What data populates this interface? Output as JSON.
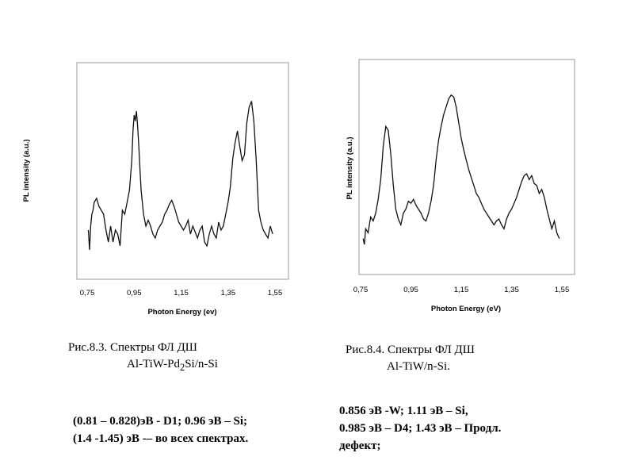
{
  "chart_data": [
    {
      "type": "line",
      "xlabel": "Photon Energy (ev)",
      "ylabel": "PL intensity (a.u.)",
      "xticks": [
        "0,75",
        "0,95",
        "1,15",
        "1,35",
        "1,55"
      ],
      "xlim": [
        0.75,
        1.55
      ],
      "ylim": [
        0,
        1
      ],
      "series": [
        {
          "x": [
            0.755,
            0.76,
            0.765,
            0.77,
            0.775,
            0.78,
            0.79,
            0.8,
            0.81,
            0.82,
            0.83,
            0.84,
            0.85,
            0.86,
            0.87,
            0.88,
            0.89,
            0.9,
            0.91,
            0.92,
            0.93,
            0.94,
            0.945,
            0.95,
            0.955,
            0.96,
            0.965,
            0.97,
            0.975,
            0.98,
            0.99,
            1.0,
            1.01,
            1.02,
            1.03,
            1.04,
            1.05,
            1.06,
            1.07,
            1.08,
            1.09,
            1.1,
            1.11,
            1.12,
            1.13,
            1.14,
            1.15,
            1.16,
            1.17,
            1.18,
            1.19,
            1.2,
            1.21,
            1.22,
            1.23,
            1.24,
            1.25,
            1.26,
            1.27,
            1.28,
            1.29,
            1.3,
            1.31,
            1.32,
            1.33,
            1.34,
            1.35,
            1.36,
            1.37,
            1.38,
            1.39,
            1.4,
            1.41,
            1.42,
            1.43,
            1.44,
            1.45,
            1.46,
            1.47,
            1.48,
            1.49,
            1.5,
            1.51,
            1.52,
            1.53,
            1.54
          ],
          "y": [
            0.2,
            0.1,
            0.22,
            0.28,
            0.3,
            0.34,
            0.36,
            0.32,
            0.3,
            0.28,
            0.2,
            0.14,
            0.22,
            0.14,
            0.2,
            0.18,
            0.12,
            0.3,
            0.28,
            0.34,
            0.4,
            0.55,
            0.7,
            0.78,
            0.75,
            0.8,
            0.72,
            0.62,
            0.5,
            0.4,
            0.28,
            0.22,
            0.25,
            0.22,
            0.18,
            0.16,
            0.2,
            0.22,
            0.24,
            0.28,
            0.3,
            0.33,
            0.35,
            0.32,
            0.28,
            0.24,
            0.22,
            0.2,
            0.22,
            0.25,
            0.18,
            0.22,
            0.19,
            0.16,
            0.2,
            0.22,
            0.14,
            0.12,
            0.18,
            0.22,
            0.18,
            0.16,
            0.24,
            0.2,
            0.22,
            0.28,
            0.34,
            0.42,
            0.56,
            0.64,
            0.7,
            0.62,
            0.55,
            0.58,
            0.74,
            0.82,
            0.85,
            0.75,
            0.55,
            0.3,
            0.24,
            0.2,
            0.18,
            0.16,
            0.22,
            0.18
          ]
        }
      ]
    },
    {
      "type": "line",
      "xlabel": "Photon Energy (eV)",
      "ylabel": "PL intensity (a.u.)",
      "xticks": [
        "0,75",
        "0,95",
        "1,15",
        "1,35",
        "1,55"
      ],
      "xlim": [
        0.75,
        1.55
      ],
      "ylim": [
        0,
        1
      ],
      "series": [
        {
          "x": [
            0.76,
            0.765,
            0.77,
            0.78,
            0.79,
            0.8,
            0.81,
            0.82,
            0.83,
            0.84,
            0.85,
            0.86,
            0.87,
            0.88,
            0.89,
            0.9,
            0.91,
            0.92,
            0.93,
            0.94,
            0.95,
            0.96,
            0.97,
            0.98,
            0.99,
            1.0,
            1.01,
            1.02,
            1.03,
            1.04,
            1.05,
            1.06,
            1.07,
            1.08,
            1.09,
            1.1,
            1.11,
            1.12,
            1.13,
            1.14,
            1.15,
            1.16,
            1.17,
            1.18,
            1.19,
            1.2,
            1.21,
            1.22,
            1.23,
            1.24,
            1.25,
            1.26,
            1.27,
            1.28,
            1.29,
            1.3,
            1.31,
            1.32,
            1.33,
            1.34,
            1.35,
            1.36,
            1.37,
            1.38,
            1.39,
            1.4,
            1.41,
            1.42,
            1.43,
            1.44,
            1.45,
            1.46,
            1.47,
            1.48,
            1.49,
            1.5,
            1.51,
            1.52,
            1.53,
            1.54
          ],
          "y": [
            0.15,
            0.12,
            0.2,
            0.18,
            0.26,
            0.24,
            0.28,
            0.35,
            0.45,
            0.62,
            0.72,
            0.7,
            0.58,
            0.42,
            0.3,
            0.25,
            0.22,
            0.28,
            0.3,
            0.34,
            0.33,
            0.35,
            0.32,
            0.3,
            0.28,
            0.25,
            0.24,
            0.28,
            0.34,
            0.42,
            0.55,
            0.65,
            0.72,
            0.78,
            0.82,
            0.86,
            0.88,
            0.87,
            0.82,
            0.74,
            0.66,
            0.6,
            0.55,
            0.5,
            0.46,
            0.42,
            0.38,
            0.36,
            0.33,
            0.3,
            0.28,
            0.26,
            0.24,
            0.22,
            0.24,
            0.25,
            0.22,
            0.2,
            0.25,
            0.28,
            0.3,
            0.33,
            0.36,
            0.4,
            0.44,
            0.47,
            0.48,
            0.45,
            0.47,
            0.43,
            0.42,
            0.38,
            0.4,
            0.36,
            0.3,
            0.25,
            0.2,
            0.24,
            0.18,
            0.15
          ]
        }
      ]
    }
  ],
  "captions": {
    "left_line1": "Рис.8.3.  Спектры  ФЛ  ДШ",
    "left_line2_a": "Al-TiW-Pd",
    "left_line2_sub": "2",
    "left_line2_b": "Si/n-Si",
    "right_line1": "Рис.8.4. Спектры  ФЛ ДШ",
    "right_line2": "Al-TiW/n-Si."
  },
  "notes": {
    "left_line1": "(0.81 – 0.828)эВ - D1; 0.96 эВ – Si;",
    "left_line2": "(1.4 -1.45) эВ -– во всех спектрах.",
    "right_line1": "0.856 эВ -W; 1.11 эВ – Si,",
    "right_line2": "0.985 эВ – D4; 1.43 эВ – Продл.",
    "right_line3": "дефект;"
  }
}
